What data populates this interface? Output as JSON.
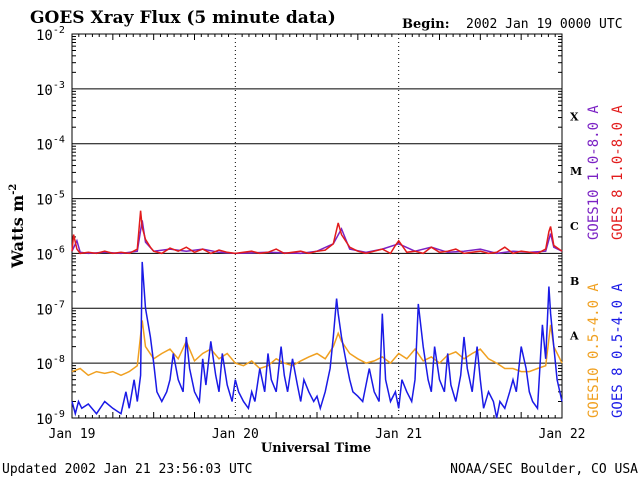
{
  "chart_data": {
    "type": "line",
    "title": "GOES Xray Flux (5 minute data)",
    "begin_label": "Begin:",
    "begin_value": "2002 Jan 19 0000 UTC",
    "xlabel": "Universal Time",
    "ylabel": "Watts m",
    "ylabel_sup": "-2",
    "y_scale": "log",
    "ylim": [
      1e-09,
      0.01
    ],
    "y_ticks": [
      {
        "base": "10",
        "exp": "-2",
        "value": 0.01
      },
      {
        "base": "10",
        "exp": "-3",
        "value": 0.001
      },
      {
        "base": "10",
        "exp": "-4",
        "value": 0.0001
      },
      {
        "base": "10",
        "exp": "-5",
        "value": 1e-05
      },
      {
        "base": "10",
        "exp": "-6",
        "value": 1e-06
      },
      {
        "base": "10",
        "exp": "-7",
        "value": 1e-07
      },
      {
        "base": "10",
        "exp": "-8",
        "value": 1e-08
      },
      {
        "base": "10",
        "exp": "-9",
        "value": 1e-09
      }
    ],
    "x_unit": "days",
    "xlim": [
      0,
      3
    ],
    "x_ticks": [
      {
        "label": "Jan 19",
        "value": 0
      },
      {
        "label": "Jan 20",
        "value": 1
      },
      {
        "label": "Jan 21",
        "value": 2
      },
      {
        "label": "Jan 22",
        "value": 3
      }
    ],
    "flare_classes": [
      {
        "label": "X",
        "value": 0.000316
      },
      {
        "label": "M",
        "value": 3.16e-05
      },
      {
        "label": "C",
        "value": 3.16e-06
      },
      {
        "label": "B",
        "value": 3.16e-07
      },
      {
        "label": "A",
        "value": 3.16e-08
      }
    ],
    "grid": "horizontal at each decade",
    "legend_position": "right, vertical",
    "series": [
      {
        "name": "GOES10 1.0-8.0 A",
        "color": "#7b22c4",
        "x": [
          0,
          0.03,
          0.05,
          0.1,
          0.2,
          0.3,
          0.4,
          0.43,
          0.45,
          0.5,
          0.6,
          0.7,
          0.8,
          0.9,
          1.0,
          1.2,
          1.4,
          1.5,
          1.6,
          1.65,
          1.7,
          1.8,
          1.9,
          2.0,
          2.1,
          2.2,
          2.3,
          2.4,
          2.5,
          2.6,
          2.7,
          2.8,
          2.9,
          2.93,
          2.95,
          3.0
        ],
        "y": [
          1.1e-06,
          1.7e-06,
          1.05e-06,
          1e-06,
          1.05e-06,
          1e-06,
          1.1e-06,
          4e-06,
          1.6e-06,
          1.1e-06,
          1.2e-06,
          1.1e-06,
          1.2e-06,
          1.05e-06,
          1e-06,
          1.05e-06,
          1e-06,
          1.1e-06,
          1.5e-06,
          2.8e-06,
          1.2e-06,
          1.05e-06,
          1.2e-06,
          1.5e-06,
          1.1e-06,
          1.3e-06,
          1.05e-06,
          1.1e-06,
          1.2e-06,
          1e-06,
          1.1e-06,
          1.05e-06,
          1.1e-06,
          2.3e-06,
          1.3e-06,
          1.1e-06
        ]
      },
      {
        "name": "GOES 8 1.0-8.0 A",
        "color": "#e21b1b",
        "x": [
          0,
          0.01,
          0.03,
          0.05,
          0.1,
          0.15,
          0.2,
          0.25,
          0.3,
          0.35,
          0.4,
          0.42,
          0.43,
          0.45,
          0.48,
          0.5,
          0.55,
          0.6,
          0.65,
          0.7,
          0.75,
          0.8,
          0.85,
          0.9,
          0.95,
          1.0,
          1.05,
          1.1,
          1.15,
          1.2,
          1.25,
          1.3,
          1.35,
          1.4,
          1.45,
          1.5,
          1.55,
          1.6,
          1.63,
          1.65,
          1.7,
          1.75,
          1.8,
          1.85,
          1.9,
          1.95,
          1.98,
          2.0,
          2.05,
          2.1,
          2.15,
          2.2,
          2.25,
          2.3,
          2.35,
          2.4,
          2.45,
          2.5,
          2.55,
          2.6,
          2.65,
          2.7,
          2.75,
          2.8,
          2.85,
          2.9,
          2.92,
          2.93,
          2.95,
          3.0
        ],
        "y": [
          1.1e-06,
          2.2e-06,
          1.2e-06,
          1e-06,
          1.05e-06,
          1e-06,
          1.1e-06,
          1e-06,
          1.05e-06,
          1e-06,
          1.2e-06,
          6e-06,
          3e-06,
          1.8e-06,
          1.3e-06,
          1.1e-06,
          1e-06,
          1.25e-06,
          1.1e-06,
          1.3e-06,
          1.05e-06,
          1.2e-06,
          1e-06,
          1.15e-06,
          1.05e-06,
          1e-06,
          1.05e-06,
          1.1e-06,
          1e-06,
          1.05e-06,
          1.2e-06,
          1e-06,
          1.05e-06,
          1.1e-06,
          1e-06,
          1.1e-06,
          1.15e-06,
          1.5e-06,
          3.6e-06,
          2.2e-06,
          1.3e-06,
          1.1e-06,
          1e-06,
          1.1e-06,
          1.2e-06,
          1e-06,
          1.4e-06,
          1.7e-06,
          1.05e-06,
          1.1e-06,
          1e-06,
          1.3e-06,
          1.05e-06,
          1.1e-06,
          1.2e-06,
          1e-06,
          1.05e-06,
          1.1e-06,
          1e-06,
          1.05e-06,
          1.3e-06,
          1e-06,
          1.1e-06,
          1.05e-06,
          1e-06,
          1.2e-06,
          2.5e-06,
          3.1e-06,
          1.4e-06,
          1.1e-06
        ]
      },
      {
        "name": "GOES10 0.5-4.0 A",
        "color": "#f0a020",
        "x": [
          0,
          0.05,
          0.1,
          0.15,
          0.2,
          0.25,
          0.3,
          0.35,
          0.4,
          0.43,
          0.45,
          0.5,
          0.55,
          0.6,
          0.65,
          0.7,
          0.75,
          0.8,
          0.85,
          0.9,
          0.95,
          1.0,
          1.05,
          1.1,
          1.15,
          1.2,
          1.25,
          1.3,
          1.35,
          1.4,
          1.45,
          1.5,
          1.55,
          1.6,
          1.63,
          1.65,
          1.7,
          1.75,
          1.8,
          1.85,
          1.9,
          1.95,
          2.0,
          2.05,
          2.1,
          2.15,
          2.2,
          2.25,
          2.3,
          2.35,
          2.4,
          2.45,
          2.5,
          2.55,
          2.6,
          2.65,
          2.7,
          2.75,
          2.8,
          2.85,
          2.9,
          2.93,
          2.95,
          3.0
        ],
        "y": [
          7e-09,
          8e-09,
          6e-09,
          7e-09,
          6.5e-09,
          7e-09,
          6e-09,
          7e-09,
          9e-09,
          6e-08,
          2e-08,
          1.2e-08,
          1.5e-08,
          1.8e-08,
          1.2e-08,
          2.5e-08,
          1.1e-08,
          1.5e-08,
          1.8e-08,
          1.2e-08,
          1.5e-08,
          1e-08,
          9e-09,
          1.1e-08,
          8e-09,
          9e-09,
          1.2e-08,
          1e-08,
          9e-09,
          1.1e-08,
          1.3e-08,
          1.5e-08,
          1.2e-08,
          2e-08,
          3.5e-08,
          2.5e-08,
          1.5e-08,
          1.2e-08,
          1e-08,
          1.1e-08,
          1.3e-08,
          1e-08,
          1.5e-08,
          1.2e-08,
          1.8e-08,
          1.1e-08,
          1.3e-08,
          1e-08,
          1.4e-08,
          1.6e-08,
          1.2e-08,
          1.5e-08,
          1.8e-08,
          1.2e-08,
          1e-08,
          8e-09,
          8e-09,
          7e-09,
          7e-09,
          8e-09,
          9e-09,
          5e-08,
          2e-08,
          1e-08
        ]
      },
      {
        "name": "GOES 8 0.5-4.0 A",
        "color": "#1a1ae6",
        "x": [
          0,
          0.02,
          0.04,
          0.06,
          0.1,
          0.15,
          0.2,
          0.25,
          0.3,
          0.33,
          0.35,
          0.38,
          0.4,
          0.42,
          0.43,
          0.45,
          0.48,
          0.5,
          0.52,
          0.55,
          0.58,
          0.6,
          0.62,
          0.65,
          0.68,
          0.7,
          0.72,
          0.75,
          0.78,
          0.8,
          0.82,
          0.85,
          0.88,
          0.9,
          0.92,
          0.95,
          0.98,
          1.0,
          1.02,
          1.05,
          1.08,
          1.1,
          1.12,
          1.15,
          1.18,
          1.2,
          1.22,
          1.25,
          1.28,
          1.3,
          1.32,
          1.35,
          1.38,
          1.4,
          1.42,
          1.45,
          1.48,
          1.5,
          1.52,
          1.55,
          1.58,
          1.6,
          1.62,
          1.63,
          1.65,
          1.68,
          1.7,
          1.72,
          1.75,
          1.78,
          1.8,
          1.82,
          1.85,
          1.88,
          1.9,
          1.92,
          1.95,
          1.98,
          2.0,
          2.02,
          2.05,
          2.08,
          2.1,
          2.12,
          2.15,
          2.18,
          2.2,
          2.22,
          2.25,
          2.28,
          2.3,
          2.32,
          2.35,
          2.38,
          2.4,
          2.42,
          2.45,
          2.48,
          2.5,
          2.52,
          2.55,
          2.58,
          2.6,
          2.62,
          2.65,
          2.68,
          2.7,
          2.72,
          2.75,
          2.78,
          2.8,
          2.82,
          2.85,
          2.88,
          2.9,
          2.92,
          2.93,
          2.95,
          2.97,
          3.0
        ],
        "y": [
          2e-09,
          1.2e-09,
          2e-09,
          1.5e-09,
          1.8e-09,
          1.2e-09,
          2e-09,
          1.5e-09,
          1.2e-09,
          3e-09,
          1.5e-09,
          5e-09,
          2e-09,
          6e-09,
          7e-07,
          1e-07,
          3e-08,
          1e-08,
          3e-09,
          2e-09,
          3e-09,
          5e-09,
          1.5e-08,
          5e-09,
          3e-09,
          3e-08,
          8e-09,
          3e-09,
          2e-09,
          1.2e-08,
          4e-09,
          2.5e-08,
          6e-09,
          3e-09,
          1.5e-08,
          4e-09,
          2e-09,
          5e-09,
          3e-09,
          2e-09,
          1.5e-09,
          3e-09,
          2e-09,
          8e-09,
          3e-09,
          1.5e-08,
          5e-09,
          3e-09,
          2e-08,
          6e-09,
          3e-09,
          1.2e-08,
          4e-09,
          2e-09,
          5e-09,
          3e-09,
          2e-09,
          2.5e-09,
          1.5e-09,
          3e-09,
          8e-09,
          3e-08,
          1.5e-07,
          8e-08,
          3e-08,
          1e-08,
          5e-09,
          3e-09,
          2.5e-09,
          2e-09,
          4e-09,
          8e-09,
          3e-09,
          2e-09,
          8e-08,
          5e-09,
          2e-09,
          3e-09,
          1.5e-09,
          5e-09,
          3e-09,
          2e-09,
          5e-09,
          1.2e-07,
          2e-08,
          5e-09,
          3e-09,
          2e-08,
          5e-09,
          3e-09,
          1.5e-08,
          4e-09,
          2e-09,
          6e-09,
          3e-08,
          8e-09,
          3e-09,
          2e-08,
          5e-09,
          1.5e-09,
          3e-09,
          2e-09,
          1e-09,
          2e-09,
          1.5e-09,
          3e-09,
          5e-09,
          3e-09,
          2e-08,
          8e-09,
          3e-09,
          2e-09,
          1.5e-09,
          5e-08,
          1.2e-08,
          2.5e-07,
          8e-08,
          2e-08,
          5e-09,
          2e-09
        ]
      }
    ]
  },
  "footer": {
    "updated": "Updated 2002 Jan 21 23:56:03 UTC",
    "credit": "NOAA/SEC Boulder, CO USA"
  }
}
